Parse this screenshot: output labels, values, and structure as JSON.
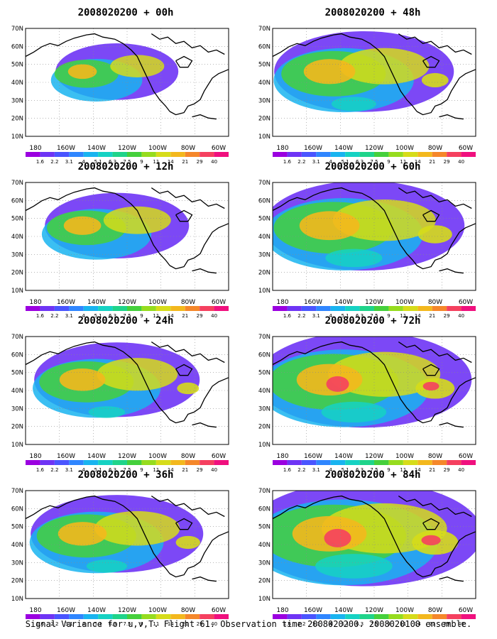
{
  "panels": [
    {
      "title": "2008020200 + 00h",
      "intensity": 0.15
    },
    {
      "title": "2008020200 + 48h",
      "intensity": 0.55
    },
    {
      "title": "2008020200 + 12h",
      "intensity": 0.3
    },
    {
      "title": "2008020200 + 60h",
      "intensity": 0.7
    },
    {
      "title": "2008020200 + 24h",
      "intensity": 0.45
    },
    {
      "title": "2008020200 + 72h",
      "intensity": 0.8
    },
    {
      "title": "2008020200 + 36h",
      "intensity": 0.5
    },
    {
      "title": "2008020200 + 84h",
      "intensity": 0.95
    }
  ],
  "lat_labels": [
    "70N",
    "60N",
    "50N",
    "40N",
    "30N",
    "20N",
    "10N"
  ],
  "lon_labels": [
    "180",
    "160W",
    "140W",
    "120W",
    "100W",
    "80W",
    "60W"
  ],
  "colorbar": {
    "labels": [
      "1.6",
      "2.2",
      "3.1",
      "4",
      "5.1",
      "6.3",
      "7.5",
      "9",
      "11",
      "14",
      "21",
      "29",
      "40"
    ],
    "colors": [
      "#9b00e0",
      "#6e34f5",
      "#4a55ff",
      "#2f86ff",
      "#19b4f0",
      "#16d2c3",
      "#1fd48a",
      "#45d03c",
      "#96dc1e",
      "#d6dc1a",
      "#f3b81d",
      "#f5872a",
      "#f5405f",
      "#f0107e"
    ]
  },
  "footer": "Signal Variance for u,v,T. Flight 61. Observation time 2008020200. 2008020100 ensemble."
}
